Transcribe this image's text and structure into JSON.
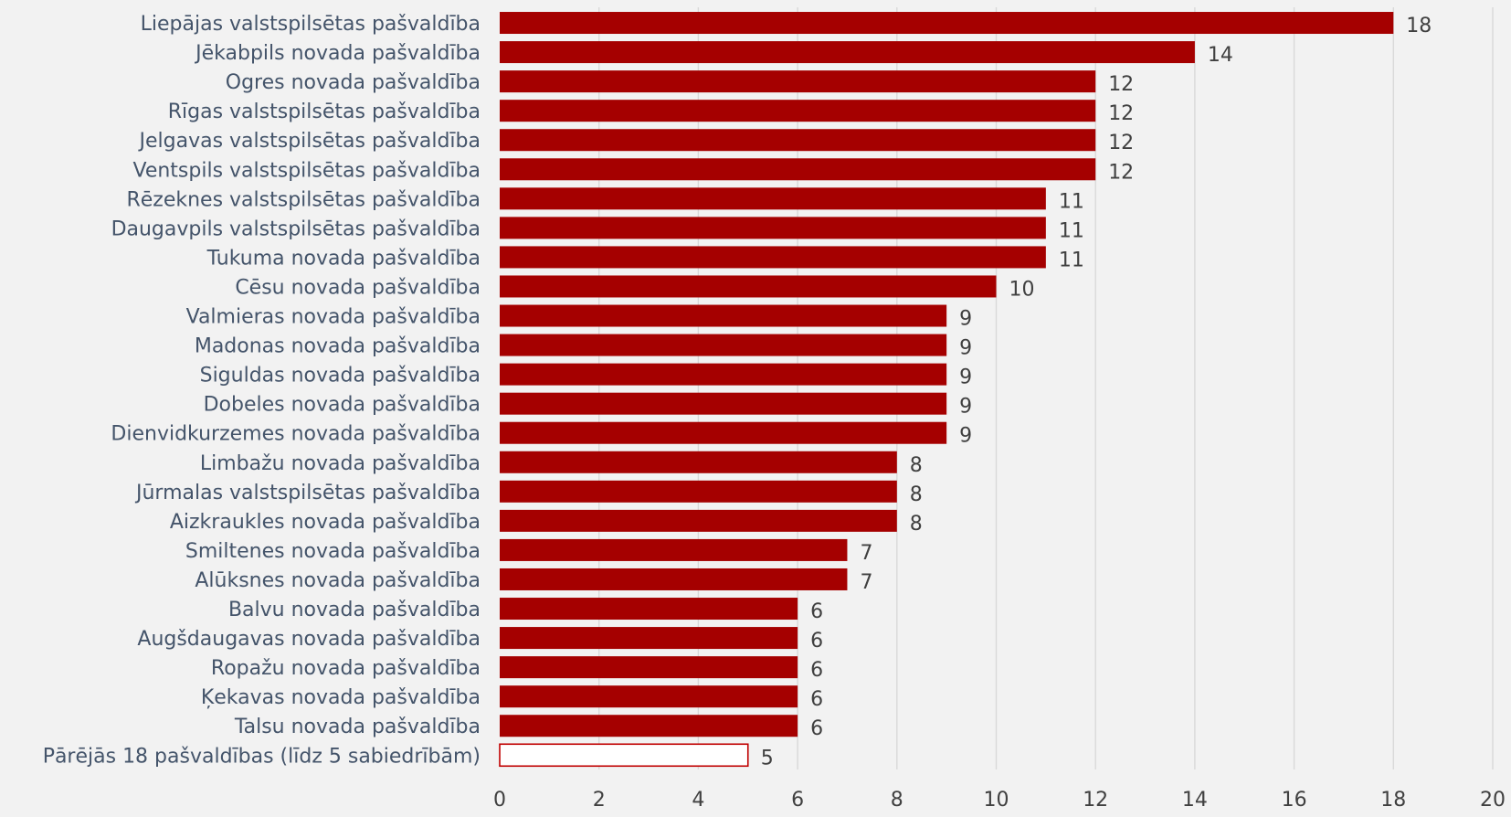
{
  "chart_data": {
    "type": "bar",
    "orientation": "horizontal",
    "title": "",
    "xlabel": "",
    "ylabel": "",
    "xlim": [
      0,
      20
    ],
    "xticks": [
      0,
      2,
      4,
      6,
      8,
      10,
      12,
      14,
      16,
      18,
      20
    ],
    "grid": "vertical",
    "legend": "none",
    "bar_color": "#a50000",
    "bar_outline_color": "#c00000",
    "categories": [
      "Liepājas valstspilsētas pašvaldība",
      "Jēkabpils novada pašvaldība",
      "Ogres novada pašvaldība",
      "Rīgas valstspilsētas pašvaldība",
      "Jelgavas valstspilsētas pašvaldība",
      "Ventspils valstspilsētas pašvaldība",
      "Rēzeknes valstspilsētas pašvaldība",
      "Daugavpils valstspilsētas pašvaldība",
      "Tukuma novada pašvaldība",
      "Cēsu novada pašvaldība",
      "Valmieras novada pašvaldība",
      "Madonas novada pašvaldība",
      "Siguldas novada pašvaldība",
      "Dobeles novada pašvaldība",
      "Dienvidkurzemes novada pašvaldība",
      "Limbažu novada pašvaldība",
      "Jūrmalas valstspilsētas pašvaldība",
      "Aizkraukles novada pašvaldība",
      "Smiltenes novada pašvaldība",
      "Alūksnes novada pašvaldība",
      "Balvu novada pašvaldība",
      "Augšdaugavas novada pašvaldība",
      "Ropažu novada pašvaldība",
      "Ķekavas novada pašvaldība",
      "Talsu novada pašvaldība",
      "Pārējās 18 pašvaldības (līdz 5 sabiedrībām)"
    ],
    "values": [
      18,
      14,
      12,
      12,
      12,
      12,
      11,
      11,
      11,
      10,
      9,
      9,
      9,
      9,
      9,
      8,
      8,
      8,
      7,
      7,
      6,
      6,
      6,
      6,
      6,
      5
    ],
    "outlined_categories": [
      "Pārējās 18 pašvaldības (līdz 5 sabiedrībām)"
    ]
  }
}
